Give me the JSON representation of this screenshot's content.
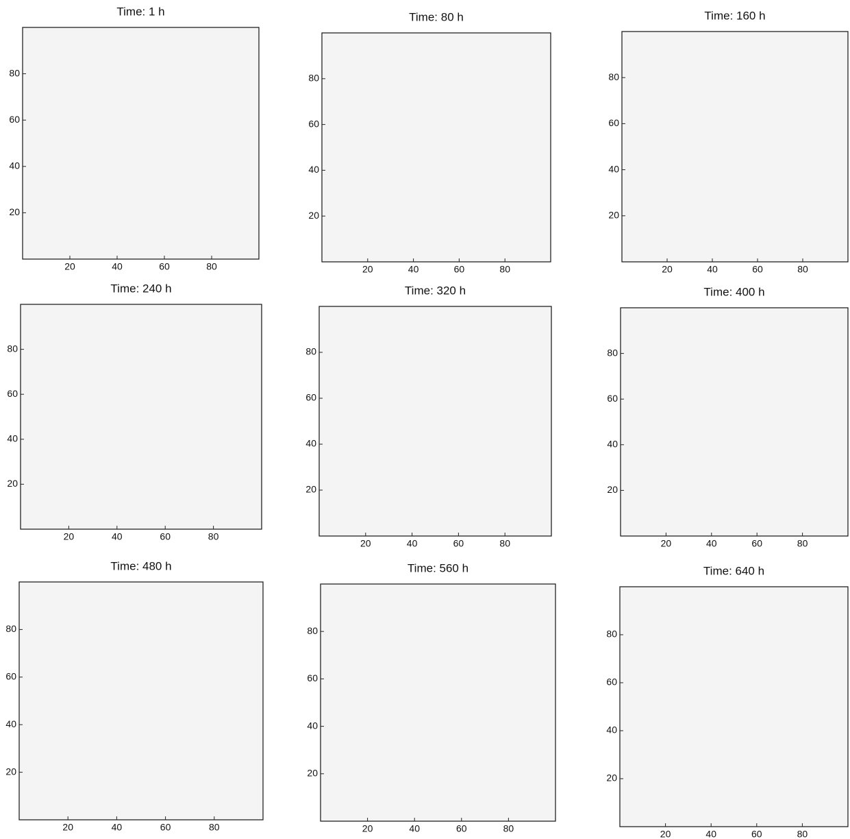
{
  "chart_data": [
    {
      "type": "image",
      "title": "Time: 1 h",
      "xlim": [
        0,
        100
      ],
      "ylim": [
        0,
        100
      ],
      "xticks": [
        20,
        40,
        60,
        80
      ],
      "yticks": [
        20,
        40,
        60,
        80
      ]
    },
    {
      "type": "image",
      "title": "Time: 80 h",
      "xlim": [
        0,
        100
      ],
      "ylim": [
        0,
        100
      ],
      "xticks": [
        20,
        40,
        60,
        80
      ],
      "yticks": [
        20,
        40,
        60,
        80
      ]
    },
    {
      "type": "image",
      "title": "Time: 160 h",
      "xlim": [
        0,
        100
      ],
      "ylim": [
        0,
        100
      ],
      "xticks": [
        20,
        40,
        60,
        80
      ],
      "yticks": [
        20,
        40,
        60,
        80
      ]
    },
    {
      "type": "image",
      "title": "Time: 240 h",
      "xlim": [
        0,
        100
      ],
      "ylim": [
        0,
        100
      ],
      "xticks": [
        20,
        40,
        60,
        80
      ],
      "yticks": [
        20,
        40,
        60,
        80
      ]
    },
    {
      "type": "image",
      "title": "Time: 320 h",
      "xlim": [
        0,
        100
      ],
      "ylim": [
        0,
        100
      ],
      "xticks": [
        20,
        40,
        60,
        80
      ],
      "yticks": [
        20,
        40,
        60,
        80
      ]
    },
    {
      "type": "image",
      "title": "Time: 400 h",
      "xlim": [
        0,
        100
      ],
      "ylim": [
        0,
        100
      ],
      "xticks": [
        20,
        40,
        60,
        80
      ],
      "yticks": [
        20,
        40,
        60,
        80
      ]
    },
    {
      "type": "image",
      "title": "Time: 480 h",
      "xlim": [
        0,
        100
      ],
      "ylim": [
        0,
        100
      ],
      "xticks": [
        20,
        40,
        60,
        80
      ],
      "yticks": [
        20,
        40,
        60,
        80
      ]
    },
    {
      "type": "image",
      "title": "Time: 560 h",
      "xlim": [
        0,
        100
      ],
      "ylim": [
        0,
        100
      ],
      "xticks": [
        20,
        40,
        60,
        80
      ],
      "yticks": [
        20,
        40,
        60,
        80
      ]
    },
    {
      "type": "image",
      "title": "Time: 640 h",
      "xlim": [
        0,
        100
      ],
      "ylim": [
        0,
        100
      ],
      "xticks": [
        20,
        40,
        60,
        80
      ],
      "yticks": [
        20,
        40,
        60,
        80
      ]
    }
  ]
}
